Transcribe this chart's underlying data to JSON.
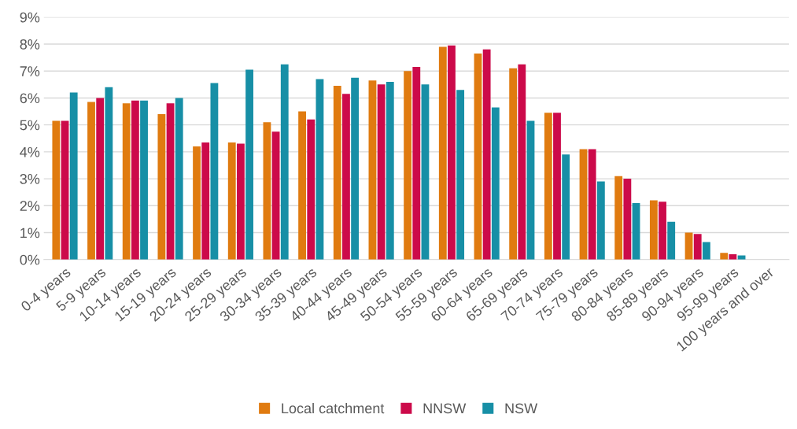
{
  "chart_data": {
    "type": "bar",
    "categories": [
      "0-4 years",
      "5-9 years",
      "10-14 years",
      "15-19 years",
      "20-24 years",
      "25-29 years",
      "30-34 years",
      "35-39 years",
      "40-44 years",
      "45-49 years",
      "50-54 years",
      "55-59 years",
      "60-64 years",
      "65-69 years",
      "70-74 years",
      "75-79 years",
      "80-84 years",
      "85-89 years",
      "90-94 years",
      "95-99 years",
      "100 years and over"
    ],
    "series": [
      {
        "name": "Local catchment",
        "color": "#e07b10",
        "values": [
          5.15,
          5.85,
          5.8,
          5.4,
          4.2,
          4.35,
          5.1,
          5.5,
          6.45,
          6.65,
          7.0,
          7.9,
          7.65,
          7.1,
          5.45,
          4.1,
          3.1,
          2.2,
          1.0,
          0.25,
          0
        ]
      },
      {
        "name": "NNSW",
        "color": "#cc0a4a",
        "values": [
          5.15,
          6.0,
          5.9,
          5.8,
          4.35,
          4.3,
          4.75,
          5.2,
          6.15,
          6.5,
          7.15,
          7.95,
          7.8,
          7.25,
          5.45,
          4.1,
          3.0,
          2.15,
          0.95,
          0.2,
          0
        ]
      },
      {
        "name": "NSW",
        "color": "#178fa6",
        "values": [
          6.2,
          6.4,
          5.9,
          6.0,
          6.55,
          7.05,
          7.25,
          6.7,
          6.75,
          6.6,
          6.5,
          6.3,
          5.65,
          5.15,
          3.9,
          2.9,
          2.1,
          1.4,
          0.65,
          0.15,
          0
        ]
      }
    ],
    "ylim": [
      0,
      9
    ],
    "yticks": [
      {
        "value": 0,
        "label": "0%"
      },
      {
        "value": 1,
        "label": "1%"
      },
      {
        "value": 2,
        "label": "2%"
      },
      {
        "value": 3,
        "label": "3%"
      },
      {
        "value": 4,
        "label": "4%"
      },
      {
        "value": 5,
        "label": "5%"
      },
      {
        "value": 6,
        "label": "6%"
      },
      {
        "value": 7,
        "label": "7%"
      },
      {
        "value": 8,
        "label": "8%"
      },
      {
        "value": 9,
        "label": "9%"
      }
    ],
    "grid": "y",
    "legend": "bottom"
  }
}
